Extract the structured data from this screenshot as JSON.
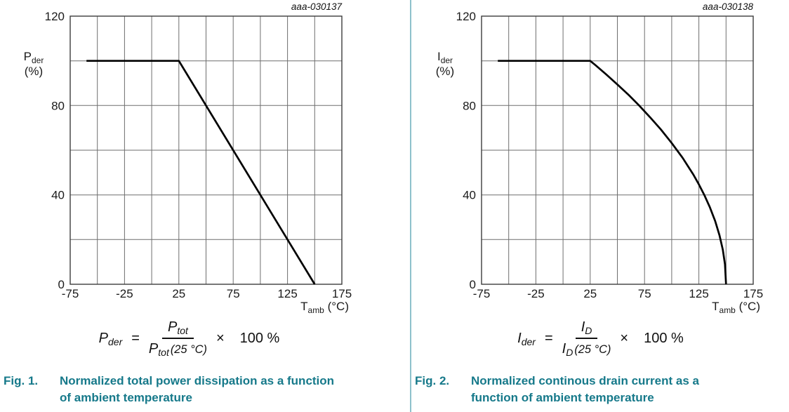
{
  "page": {
    "background": "#ffffff",
    "divider_color": "#8ec1cc",
    "accent_teal": "#16798a",
    "curve_color": "#000000",
    "grid_color": "#6e6e6e"
  },
  "chart_data": [
    {
      "type": "line",
      "title": "",
      "xlabel": "Tamb (°C)",
      "ylabel": "Pder (%)",
      "xlim": [
        -75,
        175
      ],
      "ylim": [
        0,
        120
      ],
      "x_grid_step": 25,
      "y_grid_step": 20,
      "grid": true,
      "x_tick_labels": [
        "-75",
        "-25",
        "25",
        "75",
        "125",
        "175"
      ],
      "y_tick_labels": [
        "0",
        "40",
        "80",
        "120"
      ],
      "series": [
        {
          "name": "Normalized total power dissipation",
          "points": [
            [
              -60,
              100
            ],
            [
              25,
              100
            ],
            [
              150,
              0
            ]
          ]
        }
      ]
    },
    {
      "type": "line",
      "title": "",
      "xlabel": "Tamb (°C)",
      "ylabel": "Ider (%)",
      "xlim": [
        -75,
        175
      ],
      "ylim": [
        0,
        120
      ],
      "x_grid_step": 25,
      "y_grid_step": 20,
      "grid": true,
      "x_tick_labels": [
        "-75",
        "-25",
        "25",
        "75",
        "125",
        "175"
      ],
      "y_tick_labels": [
        "0",
        "40",
        "80",
        "120"
      ],
      "series": [
        {
          "name": "Normalized continuous drain current",
          "points": [
            [
              -60,
              100
            ],
            [
              25,
              100
            ],
            [
              30,
              98
            ],
            [
              40,
              93.8
            ],
            [
              50,
              89.4
            ],
            [
              60,
              84.9
            ],
            [
              70,
              80
            ],
            [
              80,
              74.8
            ],
            [
              90,
              69.3
            ],
            [
              100,
              63.2
            ],
            [
              110,
              56.6
            ],
            [
              120,
              49
            ],
            [
              125,
              44.7
            ],
            [
              130,
              40
            ],
            [
              135,
              34.6
            ],
            [
              140,
              28.3
            ],
            [
              144,
              21.9
            ],
            [
              147,
              15.5
            ],
            [
              149,
              8.9
            ],
            [
              150,
              0
            ]
          ]
        }
      ]
    }
  ],
  "figures": [
    {
      "plot_label": "aaa-030137",
      "y_axis": {
        "symbol": "P",
        "sub": "der",
        "unit": "(%)"
      },
      "x_axis": {
        "symbol": "T",
        "sub": "amb",
        "unit": "(°C)"
      },
      "formula": {
        "lhs": "P",
        "lhs_sub": "der",
        "equals": "=",
        "num": "P",
        "num_sub": "tot",
        "den": "P",
        "den_sub": "tot",
        "den_qualifier": "(25 °C)",
        "multiply": "×",
        "rhs": "100 %"
      },
      "caption": {
        "label": "Fig. 1.",
        "text": "Normalized total power dissipation as a function of ambient temperature"
      }
    },
    {
      "plot_label": "aaa-030138",
      "y_axis": {
        "symbol": "I",
        "sub": "der",
        "unit": "(%)"
      },
      "x_axis": {
        "symbol": "T",
        "sub": "amb",
        "unit": "(°C)"
      },
      "formula": {
        "lhs": "I",
        "lhs_sub": "der",
        "equals": "=",
        "num": "I",
        "num_sub": "D",
        "den": "I",
        "den_sub": "D",
        "den_qualifier": "(25 °C)",
        "multiply": "×",
        "rhs": "100 %"
      },
      "caption": {
        "label": "Fig. 2.",
        "text": "Normalized continous drain current as a function of ambient temperature"
      }
    }
  ]
}
